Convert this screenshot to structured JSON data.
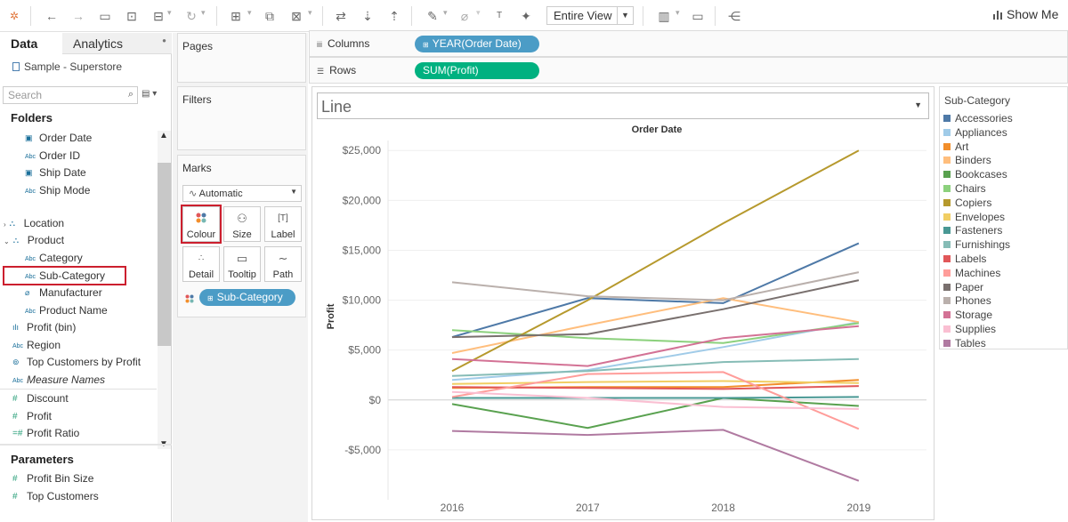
{
  "toolbar": {
    "fit_view": "Entire View",
    "show_me": "Show Me",
    "icons": [
      "tableau-logo-icon",
      "undo-icon",
      "redo-icon",
      "save-icon",
      "new-datasource-icon",
      "pause-updates-icon",
      "refresh-icon",
      "new-worksheet-icon",
      "duplicate-icon",
      "clear-icon",
      "swap-axes-icon",
      "sort-ascending-icon",
      "sort-descending-icon",
      "highlight-icon",
      "group-icon",
      "labels-icon",
      "fix-axes-icon",
      "fit-icon",
      "presentation-icon",
      "share-icon"
    ]
  },
  "data_pane": {
    "tab_data": "Data",
    "tab_analytics": "Analytics",
    "datasource": "Sample - Superstore",
    "search_placeholder": "Search",
    "folders_heading": "Folders",
    "folder_fields": [
      {
        "label": "Order Date",
        "type": "date"
      },
      {
        "label": "Order ID",
        "type": "abc"
      },
      {
        "label": "Ship Date",
        "type": "date"
      },
      {
        "label": "Ship Mode",
        "type": "abc"
      }
    ],
    "groups": [
      {
        "label": "Location",
        "expanded": false
      },
      {
        "label": "Product",
        "expanded": true
      }
    ],
    "product_fields": [
      {
        "label": "Category",
        "type": "abc"
      },
      {
        "label": "Sub-Category",
        "type": "abc"
      },
      {
        "label": "Manufacturer",
        "type": "link"
      },
      {
        "label": "Product Name",
        "type": "abc"
      }
    ],
    "other_dims": [
      {
        "label": "Profit (bin)",
        "type": "bin"
      },
      {
        "label": "Region",
        "type": "abc"
      },
      {
        "label": "Top Customers by Profit",
        "type": "set"
      },
      {
        "label": "Measure Names",
        "type": "abc"
      }
    ],
    "measures": [
      {
        "label": "Discount"
      },
      {
        "label": "Profit"
      },
      {
        "label": "Profit Ratio"
      }
    ],
    "parameters_heading": "Parameters",
    "parameters": [
      {
        "label": "Profit Bin Size"
      },
      {
        "label": "Top Customers"
      }
    ]
  },
  "cards": {
    "pages": "Pages",
    "filters": "Filters",
    "marks": "Marks",
    "mark_type": "Automatic",
    "buttons": [
      "Colour",
      "Size",
      "Label",
      "Detail",
      "Tooltip",
      "Path"
    ],
    "colour_pill": "Sub-Category"
  },
  "shelves": {
    "columns_label": "Columns",
    "columns_pill": "YEAR(Order Date)",
    "rows_label": "Rows",
    "rows_pill": "SUM(Profit)"
  },
  "view": {
    "mark_type_title": "Line"
  },
  "legend": {
    "title": "Sub-Category",
    "items": [
      {
        "name": "Accessories",
        "color": "#4e79a7"
      },
      {
        "name": "Appliances",
        "color": "#a0cbe8"
      },
      {
        "name": "Art",
        "color": "#f28e2b"
      },
      {
        "name": "Binders",
        "color": "#ffbe7d"
      },
      {
        "name": "Bookcases",
        "color": "#59a14f"
      },
      {
        "name": "Chairs",
        "color": "#8cd17d"
      },
      {
        "name": "Copiers",
        "color": "#b6992d"
      },
      {
        "name": "Envelopes",
        "color": "#f1ce63"
      },
      {
        "name": "Fasteners",
        "color": "#499894"
      },
      {
        "name": "Furnishings",
        "color": "#86bcb6"
      },
      {
        "name": "Labels",
        "color": "#e15759"
      },
      {
        "name": "Machines",
        "color": "#ff9d9a"
      },
      {
        "name": "Paper",
        "color": "#79706e"
      },
      {
        "name": "Phones",
        "color": "#bab0ac"
      },
      {
        "name": "Storage",
        "color": "#d37295"
      },
      {
        "name": "Supplies",
        "color": "#fabfd2"
      },
      {
        "name": "Tables",
        "color": "#b07aa1"
      }
    ]
  },
  "chart_data": {
    "type": "line",
    "title": "Order Date",
    "xlabel": "",
    "ylabel": "Profit",
    "x": [
      "2016",
      "2017",
      "2018",
      "2019"
    ],
    "ylim": [
      -10000,
      26000
    ],
    "yticks": [
      -5000,
      0,
      5000,
      10000,
      15000,
      20000,
      25000
    ],
    "ytick_labels": [
      "-$5,000",
      "$0",
      "$5,000",
      "$10,000",
      "$15,000",
      "$20,000",
      "$25,000"
    ],
    "grid": true,
    "series": [
      {
        "name": "Accessories",
        "values": [
          6300,
          10200,
          9700,
          15700
        ]
      },
      {
        "name": "Appliances",
        "values": [
          2000,
          3000,
          5300,
          7800
        ]
      },
      {
        "name": "Art",
        "values": [
          1200,
          1300,
          1300,
          2000
        ]
      },
      {
        "name": "Binders",
        "values": [
          4700,
          7500,
          10200,
          7800
        ]
      },
      {
        "name": "Bookcases",
        "values": [
          -400,
          -2800,
          200,
          -600
        ]
      },
      {
        "name": "Chairs",
        "values": [
          7000,
          6200,
          5700,
          7700
        ]
      },
      {
        "name": "Copiers",
        "values": [
          2900,
          10000,
          17700,
          25000
        ]
      },
      {
        "name": "Envelopes",
        "values": [
          1600,
          1800,
          1900,
          1700
        ]
      },
      {
        "name": "Fasteners",
        "values": [
          200,
          200,
          200,
          300
        ]
      },
      {
        "name": "Furnishings",
        "values": [
          2400,
          2900,
          3800,
          4100
        ]
      },
      {
        "name": "Labels",
        "values": [
          1300,
          1200,
          1100,
          1400
        ]
      },
      {
        "name": "Machines",
        "values": [
          300,
          2600,
          2800,
          -2900
        ]
      },
      {
        "name": "Paper",
        "values": [
          6300,
          6600,
          9100,
          12000
        ]
      },
      {
        "name": "Phones",
        "values": [
          11800,
          10400,
          10000,
          12800
        ]
      },
      {
        "name": "Storage",
        "values": [
          4100,
          3400,
          6200,
          7400
        ]
      },
      {
        "name": "Supplies",
        "values": [
          800,
          200,
          -700,
          -900
        ]
      },
      {
        "name": "Tables",
        "values": [
          -3100,
          -3500,
          -3000,
          -8100
        ]
      }
    ]
  }
}
